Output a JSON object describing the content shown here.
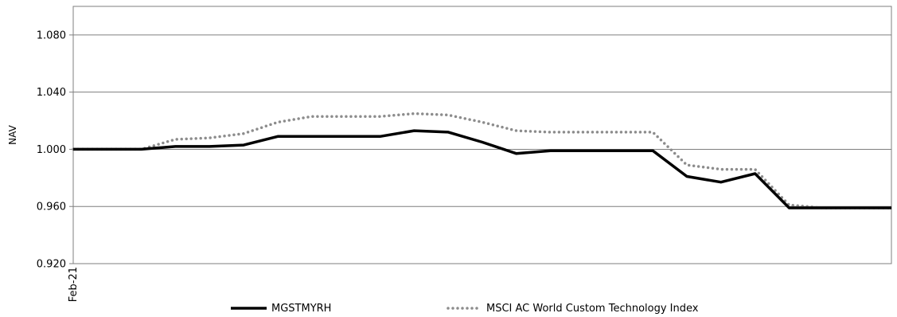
{
  "chart_data": {
    "type": "line",
    "ylabel": "NAV",
    "ylim": [
      0.92,
      1.1
    ],
    "y_ticks": [
      "0.920",
      "0.960",
      "1.000",
      "1.040",
      "1.080"
    ],
    "y_tick_values": [
      0.92,
      0.96,
      1.0,
      1.04,
      1.08
    ],
    "x_tick_labels": [
      "Feb-21"
    ],
    "x_count": 25,
    "grid": true,
    "legend_position": "bottom",
    "series": [
      {
        "name": "MGSTMYRH",
        "color": "#000000",
        "style": "solid",
        "values": [
          1.0,
          1.0,
          1.0,
          1.002,
          1.002,
          1.003,
          1.009,
          1.009,
          1.009,
          1.009,
          1.013,
          1.012,
          1.005,
          0.997,
          0.999,
          0.999,
          0.999,
          0.999,
          0.981,
          0.977,
          0.983,
          0.959,
          0.959,
          0.959,
          0.959
        ]
      },
      {
        "name": "MSCI AC World Custom Technology Index",
        "color": "#8c8c8c",
        "style": "dotted",
        "values": [
          1.0,
          1.0,
          1.0,
          1.007,
          1.008,
          1.011,
          1.019,
          1.023,
          1.023,
          1.023,
          1.025,
          1.024,
          1.019,
          1.013,
          1.012,
          1.012,
          1.012,
          1.012,
          0.989,
          0.986,
          0.986,
          0.961,
          0.959,
          0.959,
          0.959
        ]
      }
    ]
  }
}
